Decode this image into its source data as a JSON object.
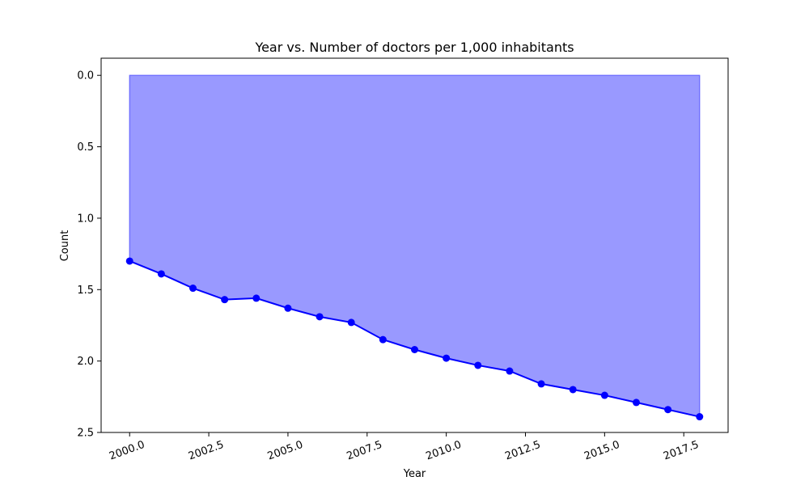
{
  "chart_data": {
    "type": "area",
    "title": "Year vs. Number of doctors per 1,000 inhabitants",
    "xlabel": "Year",
    "ylabel": "Count",
    "x": [
      2000,
      2001,
      2002,
      2003,
      2004,
      2005,
      2006,
      2007,
      2008,
      2009,
      2010,
      2011,
      2012,
      2013,
      2014,
      2015,
      2016,
      2017,
      2018
    ],
    "series": [
      {
        "values": [
          1.3,
          1.39,
          1.49,
          1.57,
          1.56,
          1.63,
          1.69,
          1.73,
          1.85,
          1.92,
          1.98,
          2.03,
          2.07,
          2.16,
          2.2,
          2.24,
          2.29,
          2.34,
          2.39
        ]
      }
    ],
    "xlim": [
      1999.1,
      2018.9
    ],
    "ylim": [
      2.5,
      -0.12
    ],
    "y_inverted": true,
    "x_ticks": [
      "2000.0",
      "2002.5",
      "2005.0",
      "2007.5",
      "2010.0",
      "2012.5",
      "2015.0",
      "2017.5"
    ],
    "x_tick_values": [
      2000.0,
      2002.5,
      2005.0,
      2007.5,
      2010.0,
      2012.5,
      2015.0,
      2017.5
    ],
    "y_ticks": [
      "0.0",
      "0.5",
      "1.0",
      "1.5",
      "2.0",
      "2.5"
    ],
    "y_tick_values": [
      0.0,
      0.5,
      1.0,
      1.5,
      2.0,
      2.5
    ],
    "fill_baseline": 0,
    "grid": false,
    "colors": {
      "line": "#0000ff",
      "fill": "#9999ff",
      "fill_edge": "#6666ff"
    }
  }
}
